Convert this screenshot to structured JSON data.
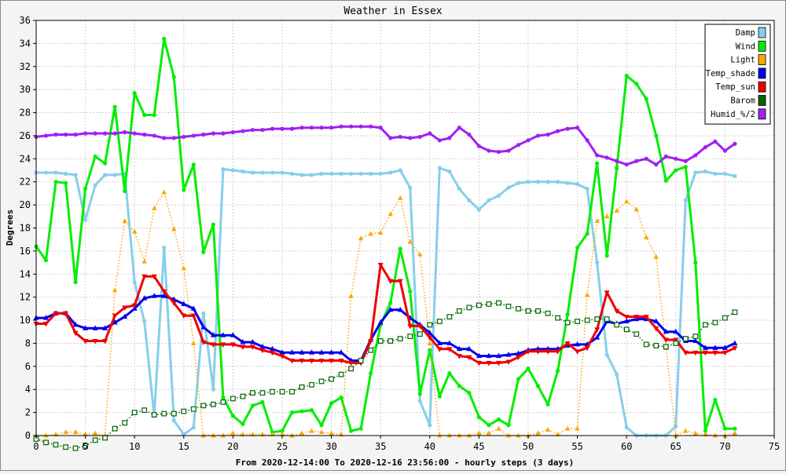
{
  "chart_data": {
    "type": "line",
    "title": "Weather in Essex",
    "xlabel": "From 2020-12-14:00 To 2020-12-16 23:56:00 - hourly steps (3 days)",
    "ylabel": "Degrees",
    "xlim": [
      0,
      75
    ],
    "ylim": [
      0,
      36
    ],
    "xticks": [
      0,
      5,
      10,
      15,
      20,
      25,
      30,
      35,
      40,
      45,
      50,
      55,
      60,
      65,
      70,
      75
    ],
    "yticks": [
      0,
      2,
      4,
      6,
      8,
      10,
      12,
      14,
      16,
      18,
      20,
      22,
      24,
      26,
      28,
      30,
      32,
      34,
      36
    ],
    "grid": true,
    "legend_position": "top-right",
    "series": [
      {
        "name": "Damp",
        "color": "#87ceeb",
        "style": "solid",
        "marker": "circle",
        "values": [
          22.8,
          22.8,
          22.8,
          22.7,
          22.6,
          18.7,
          21.7,
          22.6,
          22.6,
          22.7,
          13.3,
          9.9,
          1.7,
          16.3,
          1.3,
          0.1,
          0.7,
          10.6,
          4.0,
          23.1,
          23.0,
          22.9,
          22.8,
          22.8,
          22.8,
          22.8,
          22.7,
          22.6,
          22.6,
          22.7,
          22.7,
          22.7,
          22.7,
          22.7,
          22.7,
          22.7,
          22.8,
          23.0,
          21.5,
          3.0,
          0.9,
          23.2,
          22.9,
          21.4,
          20.4,
          19.6,
          20.4,
          20.8,
          21.5,
          21.9,
          22.0,
          22.0,
          22.0,
          22.0,
          21.9,
          21.8,
          21.4,
          15.0,
          7.0,
          5.3,
          0.7,
          0.0,
          0.0,
          0.0,
          0.0,
          0.8,
          20.4,
          22.8,
          22.9,
          22.7,
          22.7,
          22.5
        ]
      },
      {
        "name": "Wind",
        "color": "#00ee00",
        "style": "solid",
        "marker": "circle",
        "values": [
          16.4,
          15.2,
          22.0,
          21.9,
          13.3,
          21.4,
          24.2,
          23.6,
          28.5,
          21.2,
          29.7,
          27.8,
          27.8,
          34.4,
          31.1,
          21.3,
          23.5,
          15.9,
          18.3,
          3.3,
          1.7,
          1.0,
          2.6,
          2.9,
          0.3,
          0.4,
          2.0,
          2.1,
          2.2,
          0.9,
          2.8,
          3.3,
          0.4,
          0.6,
          5.4,
          9.6,
          11.5,
          16.2,
          12.5,
          3.6,
          7.4,
          3.4,
          5.4,
          4.3,
          3.7,
          1.6,
          0.9,
          1.4,
          0.9,
          4.9,
          5.8,
          4.3,
          2.7,
          5.6,
          10.5,
          16.3,
          17.5,
          23.6,
          15.6,
          23.2,
          31.2,
          30.5,
          29.2,
          26.0,
          22.1,
          23.0,
          23.3,
          15.0,
          0.4,
          3.1,
          0.6,
          0.6
        ]
      },
      {
        "name": "Light",
        "color": "#ffa500",
        "style": "dotted",
        "marker": "triangle",
        "values": [
          0.0,
          0.0,
          0.1,
          0.3,
          0.3,
          0.1,
          0.2,
          0.0,
          12.6,
          18.6,
          17.7,
          15.1,
          19.7,
          21.1,
          17.9,
          14.5,
          8.0,
          0.0,
          0.0,
          0.0,
          0.2,
          0.1,
          0.1,
          0.1,
          0.1,
          0.1,
          0.0,
          0.2,
          0.4,
          0.3,
          0.2,
          0.1,
          12.1,
          17.1,
          17.5,
          17.6,
          19.2,
          20.6,
          16.8,
          15.7,
          8.0,
          0.0,
          0.0,
          0.0,
          0.0,
          0.2,
          0.2,
          0.6,
          0.0,
          0.0,
          0.0,
          0.2,
          0.5,
          0.1,
          0.6,
          0.6,
          12.2,
          18.6,
          19.0,
          19.5,
          20.3,
          19.6,
          17.2,
          15.5,
          7.6,
          0.0,
          0.4,
          0.2,
          0.1,
          0.0,
          0.0,
          0.2
        ]
      },
      {
        "name": "Temp_shade",
        "color": "#0000ee",
        "style": "solid",
        "marker": "triangle-up",
        "values": [
          10.2,
          10.2,
          10.6,
          10.6,
          9.6,
          9.3,
          9.3,
          9.3,
          9.8,
          10.3,
          11.0,
          11.9,
          12.1,
          12.1,
          11.8,
          11.4,
          11.0,
          9.4,
          8.7,
          8.7,
          8.7,
          8.1,
          8.1,
          7.7,
          7.5,
          7.2,
          7.2,
          7.2,
          7.2,
          7.2,
          7.2,
          7.2,
          6.5,
          6.5,
          8.3,
          9.8,
          10.9,
          10.9,
          10.2,
          9.6,
          8.9,
          8.0,
          8.0,
          7.5,
          7.5,
          6.9,
          6.9,
          6.9,
          7.0,
          7.1,
          7.4,
          7.5,
          7.5,
          7.5,
          7.8,
          7.9,
          7.9,
          8.5,
          9.9,
          9.7,
          9.9,
          10.1,
          10.1,
          9.9,
          9.0,
          9.0,
          8.2,
          8.2,
          7.6,
          7.6,
          7.6,
          8.0
        ]
      },
      {
        "name": "Temp_sun",
        "color": "#ee0000",
        "style": "solid",
        "marker": "triangle-down",
        "values": [
          9.7,
          9.7,
          10.6,
          10.6,
          8.9,
          8.2,
          8.2,
          8.2,
          10.4,
          11.1,
          11.3,
          13.8,
          13.8,
          12.5,
          11.5,
          10.4,
          10.4,
          8.1,
          7.9,
          7.9,
          7.9,
          7.7,
          7.7,
          7.4,
          7.2,
          6.9,
          6.5,
          6.5,
          6.5,
          6.5,
          6.5,
          6.5,
          6.3,
          6.3,
          8.2,
          14.8,
          13.4,
          13.4,
          9.5,
          9.5,
          8.5,
          7.5,
          7.5,
          6.9,
          6.8,
          6.3,
          6.3,
          6.3,
          6.4,
          6.8,
          7.3,
          7.3,
          7.3,
          7.3,
          8.0,
          7.3,
          7.6,
          9.2,
          12.4,
          10.8,
          10.3,
          10.3,
          10.3,
          9.3,
          8.3,
          8.3,
          7.2,
          7.2,
          7.2,
          7.2,
          7.2,
          7.6
        ]
      },
      {
        "name": "Barom",
        "color": "#006400",
        "style": "dotted",
        "marker": "square",
        "values": [
          -0.3,
          -0.6,
          -0.8,
          -1.0,
          -1.1,
          -0.9,
          -0.4,
          -0.2,
          0.6,
          1.1,
          2.0,
          2.2,
          1.8,
          1.9,
          1.9,
          2.1,
          2.3,
          2.6,
          2.7,
          2.9,
          3.2,
          3.4,
          3.7,
          3.7,
          3.8,
          3.8,
          3.8,
          4.2,
          4.4,
          4.7,
          4.9,
          5.3,
          5.8,
          6.5,
          7.4,
          8.2,
          8.2,
          8.4,
          8.6,
          8.8,
          9.6,
          9.9,
          10.3,
          10.8,
          11.1,
          11.3,
          11.4,
          11.5,
          11.2,
          11.0,
          10.8,
          10.8,
          10.6,
          10.2,
          9.8,
          9.9,
          10.0,
          10.1,
          10.1,
          9.6,
          9.2,
          8.8,
          7.9,
          7.8,
          7.7,
          8.0,
          8.4,
          8.6,
          9.6,
          9.8,
          10.2,
          10.7
        ]
      },
      {
        "name": "Humid_%/2",
        "color": "#a020f0",
        "style": "solid",
        "marker": "circle",
        "values": [
          25.9,
          26.0,
          26.1,
          26.1,
          26.1,
          26.2,
          26.2,
          26.2,
          26.2,
          26.3,
          26.2,
          26.1,
          26.0,
          25.8,
          25.8,
          25.9,
          26.0,
          26.1,
          26.2,
          26.2,
          26.3,
          26.4,
          26.5,
          26.5,
          26.6,
          26.6,
          26.6,
          26.7,
          26.7,
          26.7,
          26.7,
          26.8,
          26.8,
          26.8,
          26.8,
          26.7,
          25.8,
          25.9,
          25.8,
          25.9,
          26.2,
          25.6,
          25.8,
          26.7,
          26.1,
          25.1,
          24.7,
          24.6,
          24.7,
          25.2,
          25.6,
          26.0,
          26.1,
          26.4,
          26.6,
          26.7,
          25.6,
          24.3,
          24.1,
          23.8,
          23.5,
          23.8,
          24.0,
          23.5,
          24.2,
          24.0,
          23.8,
          24.3,
          25.0,
          25.5,
          24.7,
          25.3
        ]
      }
    ]
  }
}
